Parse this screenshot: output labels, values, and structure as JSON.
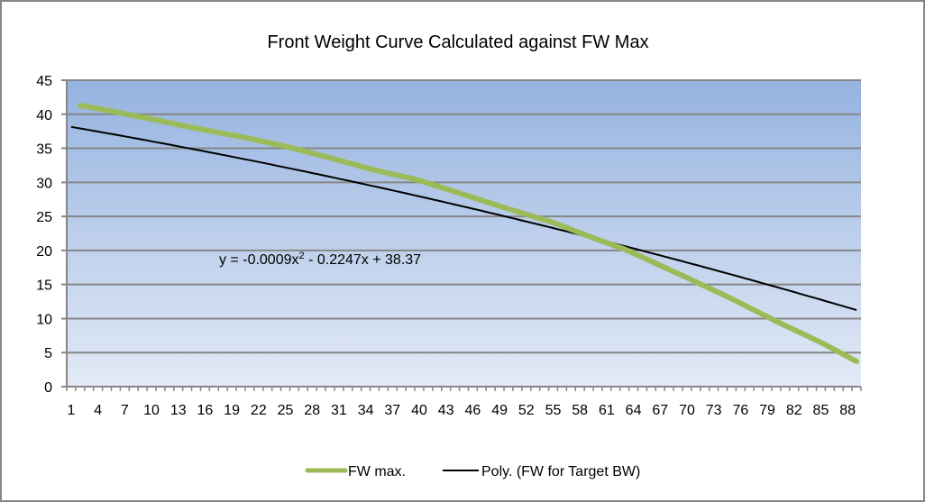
{
  "chart_data": {
    "type": "line",
    "title": "Front Weight Curve Calculated against FW Max",
    "xlabel": "",
    "ylabel": "",
    "ylim": [
      0,
      45
    ],
    "yticks": [
      "0",
      "5",
      "10",
      "15",
      "20",
      "25",
      "30",
      "35",
      "40",
      "45"
    ],
    "x_categories_range": [
      1,
      89
    ],
    "xtick_labels": [
      "1",
      "4",
      "7",
      "10",
      "13",
      "16",
      "19",
      "22",
      "25",
      "28",
      "31",
      "34",
      "37",
      "40",
      "43",
      "46",
      "49",
      "52",
      "55",
      "58",
      "61",
      "64",
      "67",
      "70",
      "73",
      "76",
      "79",
      "82",
      "85",
      "88"
    ],
    "grid": true,
    "legend_position": "bottom",
    "series": [
      {
        "name": "FW max.",
        "color": "#9BBB59",
        "x": [
          2,
          5,
          8,
          10,
          14,
          20,
          25,
          30,
          35,
          40,
          45,
          50,
          55,
          60,
          63,
          66,
          70,
          75,
          80,
          85,
          89
        ],
        "values": [
          41.3,
          40.6,
          39.8,
          39.3,
          38.2,
          36.7,
          35.3,
          33.6,
          31.8,
          30.3,
          28.2,
          26.1,
          24.1,
          21.6,
          20.2,
          18.4,
          16.0,
          12.9,
          9.6,
          6.5,
          3.7
        ]
      },
      {
        "name": "Poly. (FW for Target BW)",
        "color": "#000000",
        "type": "trendline",
        "coefficients": {
          "a": -0.0009,
          "b": -0.2247,
          "c": 38.37
        },
        "x_range": [
          1,
          89
        ]
      }
    ],
    "annotations": [
      {
        "text_prefix": "y = -0.0009x",
        "superscript": "2",
        "text_suffix": " - 0.2247x + 38.37"
      }
    ]
  }
}
